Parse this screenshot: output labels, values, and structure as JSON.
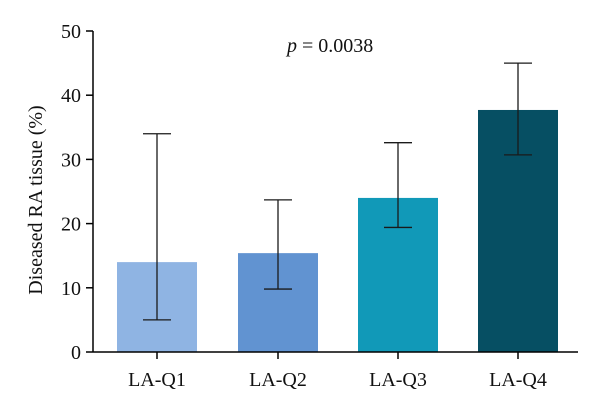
{
  "chart_data": {
    "type": "bar",
    "categories": [
      "LA-Q1",
      "LA-Q2",
      "LA-Q3",
      "LA-Q4"
    ],
    "values": [
      14,
      15.4,
      24,
      37.7
    ],
    "error_low": [
      5,
      9.8,
      19.4,
      30.7
    ],
    "error_high": [
      34,
      23.7,
      32.6,
      45
    ],
    "bar_colors": [
      "#8fb4e3",
      "#6193d1",
      "#1199b8",
      "#064f63"
    ],
    "ylabel": "Diseased RA tissue (%)",
    "xlabel": "",
    "title": "",
    "ylim": [
      0,
      50
    ],
    "yticks": [
      0,
      10,
      20,
      30,
      40,
      50
    ],
    "annotation": {
      "p_symbol": "p",
      "p_value_text": " = 0.0038"
    },
    "grid": false,
    "legend": "none"
  }
}
